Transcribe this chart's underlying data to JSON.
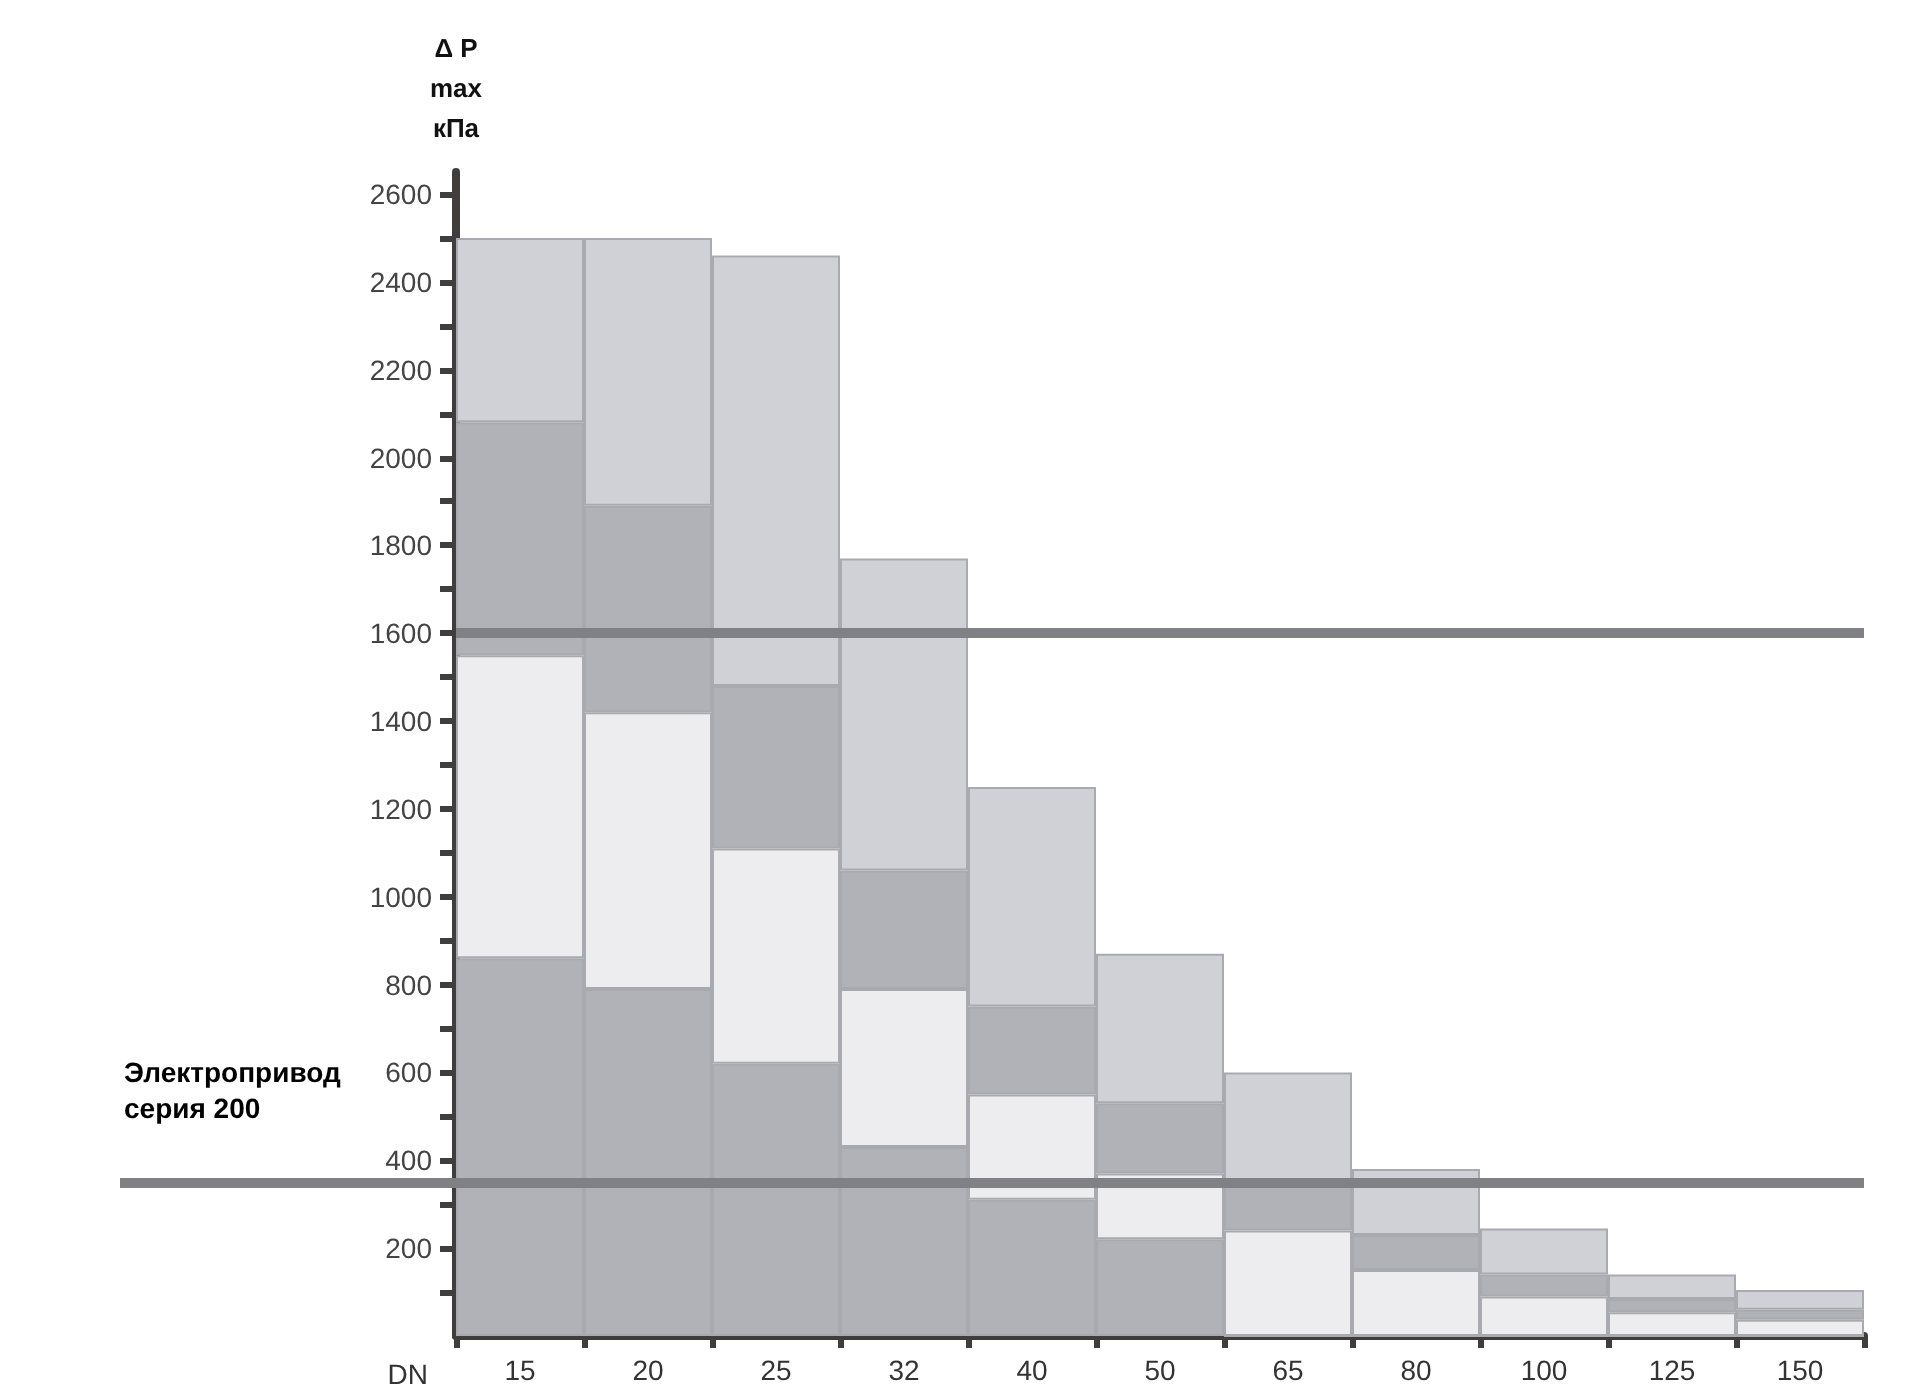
{
  "chart_data": {
    "type": "bar",
    "stacked": true,
    "xlabel": "DN",
    "ylabel": "Δ P\nmax\nкПа",
    "categories": [
      "15",
      "20",
      "25",
      "32",
      "40",
      "50",
      "65",
      "80",
      "100",
      "125",
      "150"
    ],
    "series": [
      {
        "color": "#b1b2b7",
        "values": [
          860,
          790,
          620,
          430,
          310,
          220,
          0,
          0,
          0,
          0,
          0
        ]
      },
      {
        "color": "#ededf0",
        "values": [
          690,
          630,
          490,
          360,
          240,
          150,
          240,
          150,
          90,
          54,
          37
        ]
      },
      {
        "color": "#b1b2b7",
        "values": [
          530,
          470,
          370,
          270,
          200,
          160,
          110,
          80,
          50,
          30,
          23
        ]
      },
      {
        "color": "#d0d1d6",
        "values": [
          420,
          610,
          980,
          710,
          500,
          340,
          250,
          150,
          105,
          56,
          45
        ]
      }
    ],
    "ylim": [
      0,
      2650
    ],
    "yticks": [
      {
        "value": 100,
        "label": null
      },
      200,
      {
        "value": 300,
        "label": null
      },
      400,
      {
        "value": 500,
        "label": null
      },
      600,
      {
        "value": 700,
        "label": null
      },
      800,
      {
        "value": 900,
        "label": null
      },
      1000,
      {
        "value": 1100,
        "label": null
      },
      1200,
      {
        "value": 1300,
        "label": null
      },
      1400,
      {
        "value": 1500,
        "label": null
      },
      1600,
      {
        "value": 1700,
        "label": null
      },
      1800,
      {
        "value": 1900,
        "label": null
      },
      2000,
      {
        "value": 2100,
        "label": null
      },
      2200,
      {
        "value": 2300,
        "label": null
      },
      2400,
      {
        "value": 2500,
        "label": null
      },
      2600
    ],
    "ref_lines": [
      {
        "axis": "y",
        "value": 1600,
        "color": "#808185"
      },
      {
        "axis": "y",
        "value": 350,
        "label": "Электропривод\nсерия 200",
        "color": "#808185"
      }
    ],
    "grid": false
  }
}
